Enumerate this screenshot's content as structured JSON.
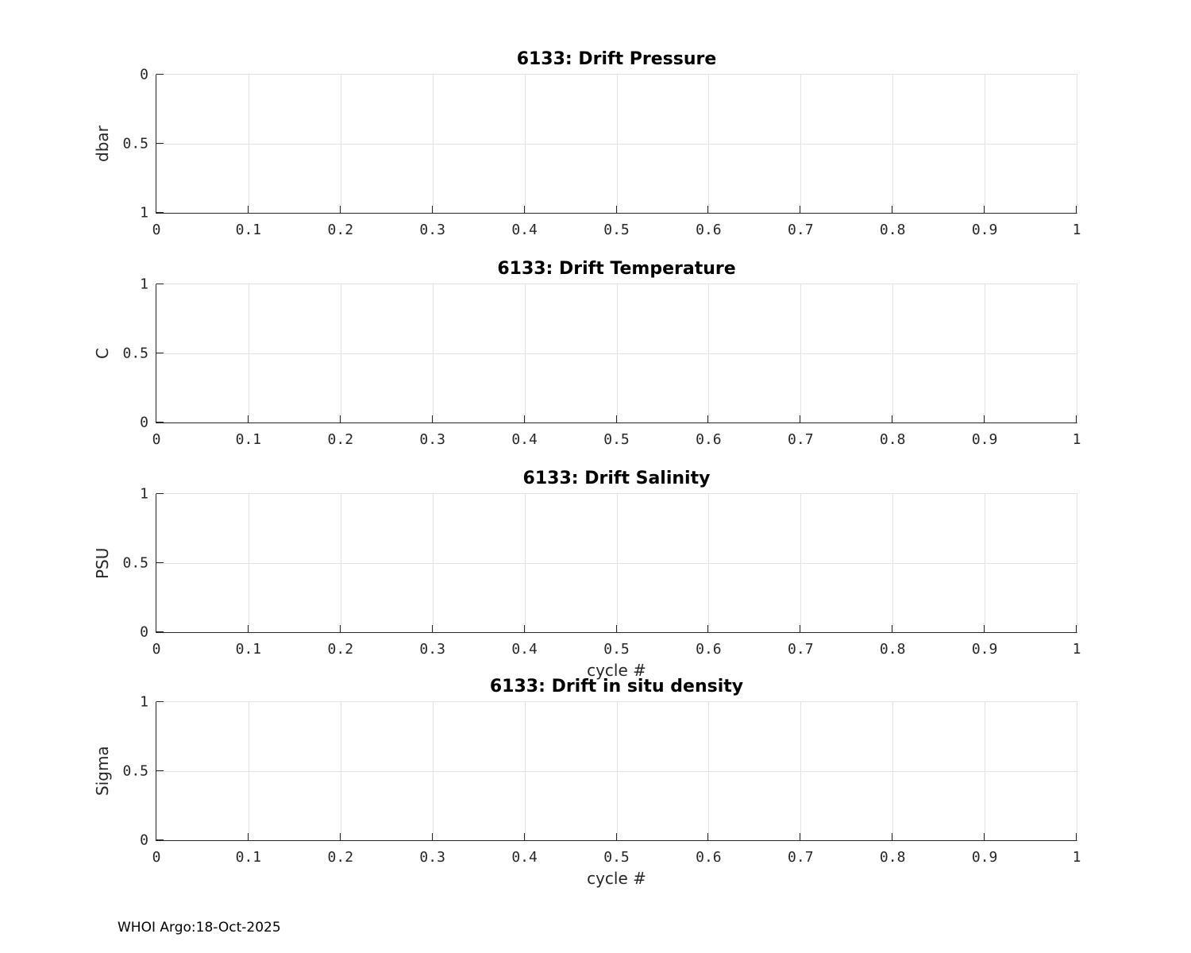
{
  "figure": {
    "background": "#ffffff",
    "footer_text": "WHOI Argo:18-Oct-2025"
  },
  "colors": {
    "axis": "#262626",
    "grid": "#e2e2e2",
    "title": "#000000",
    "tick_label": "#262626",
    "axis_label": "#262626"
  },
  "chart_data": [
    {
      "type": "line",
      "title": "6133: Drift Pressure",
      "ylabel": "dbar",
      "xlabel": "",
      "xlim": [
        0,
        1
      ],
      "ylim": [
        0,
        1
      ],
      "y_direction": "reversed",
      "grid": true,
      "x_ticks": [
        0,
        0.1,
        0.2,
        0.3,
        0.4,
        0.5,
        0.6,
        0.7,
        0.8,
        0.9,
        1
      ],
      "x_tick_labels": [
        "0",
        "0.1",
        "0.2",
        "0.3",
        "0.4",
        "0.5",
        "0.6",
        "0.7",
        "0.8",
        "0.9",
        "1"
      ],
      "y_ticks": [
        0,
        0.5,
        1
      ],
      "y_tick_labels_top_to_bottom": [
        "0",
        "0.5",
        "1"
      ],
      "series": []
    },
    {
      "type": "line",
      "title": "6133: Drift Temperature",
      "ylabel": "C",
      "xlabel": "",
      "xlim": [
        0,
        1
      ],
      "ylim": [
        0,
        1
      ],
      "y_direction": "normal",
      "grid": true,
      "x_ticks": [
        0,
        0.1,
        0.2,
        0.3,
        0.4,
        0.5,
        0.6,
        0.7,
        0.8,
        0.9,
        1
      ],
      "x_tick_labels": [
        "0",
        "0.1",
        "0.2",
        "0.3",
        "0.4",
        "0.5",
        "0.6",
        "0.7",
        "0.8",
        "0.9",
        "1"
      ],
      "y_ticks": [
        0,
        0.5,
        1
      ],
      "y_tick_labels_top_to_bottom": [
        "1",
        "0.5",
        "0"
      ],
      "series": []
    },
    {
      "type": "line",
      "title": "6133: Drift Salinity",
      "ylabel": "PSU",
      "xlabel": "cycle #",
      "xlim": [
        0,
        1
      ],
      "ylim": [
        0,
        1
      ],
      "y_direction": "normal",
      "grid": true,
      "x_ticks": [
        0,
        0.1,
        0.2,
        0.3,
        0.4,
        0.5,
        0.6,
        0.7,
        0.8,
        0.9,
        1
      ],
      "x_tick_labels": [
        "0",
        "0.1",
        "0.2",
        "0.3",
        "0.4",
        "0.5",
        "0.6",
        "0.7",
        "0.8",
        "0.9",
        "1"
      ],
      "y_ticks": [
        0,
        0.5,
        1
      ],
      "y_tick_labels_top_to_bottom": [
        "1",
        "0.5",
        "0"
      ],
      "series": []
    },
    {
      "type": "line",
      "title": "6133: Drift in situ density",
      "ylabel": "Sigma",
      "xlabel": "cycle #",
      "xlim": [
        0,
        1
      ],
      "ylim": [
        0,
        1
      ],
      "y_direction": "normal",
      "grid": true,
      "x_ticks": [
        0,
        0.1,
        0.2,
        0.3,
        0.4,
        0.5,
        0.6,
        0.7,
        0.8,
        0.9,
        1
      ],
      "x_tick_labels": [
        "0",
        "0.1",
        "0.2",
        "0.3",
        "0.4",
        "0.5",
        "0.6",
        "0.7",
        "0.8",
        "0.9",
        "1"
      ],
      "y_ticks": [
        0,
        0.5,
        1
      ],
      "y_tick_labels_top_to_bottom": [
        "1",
        "0.5",
        "0"
      ],
      "series": []
    }
  ]
}
